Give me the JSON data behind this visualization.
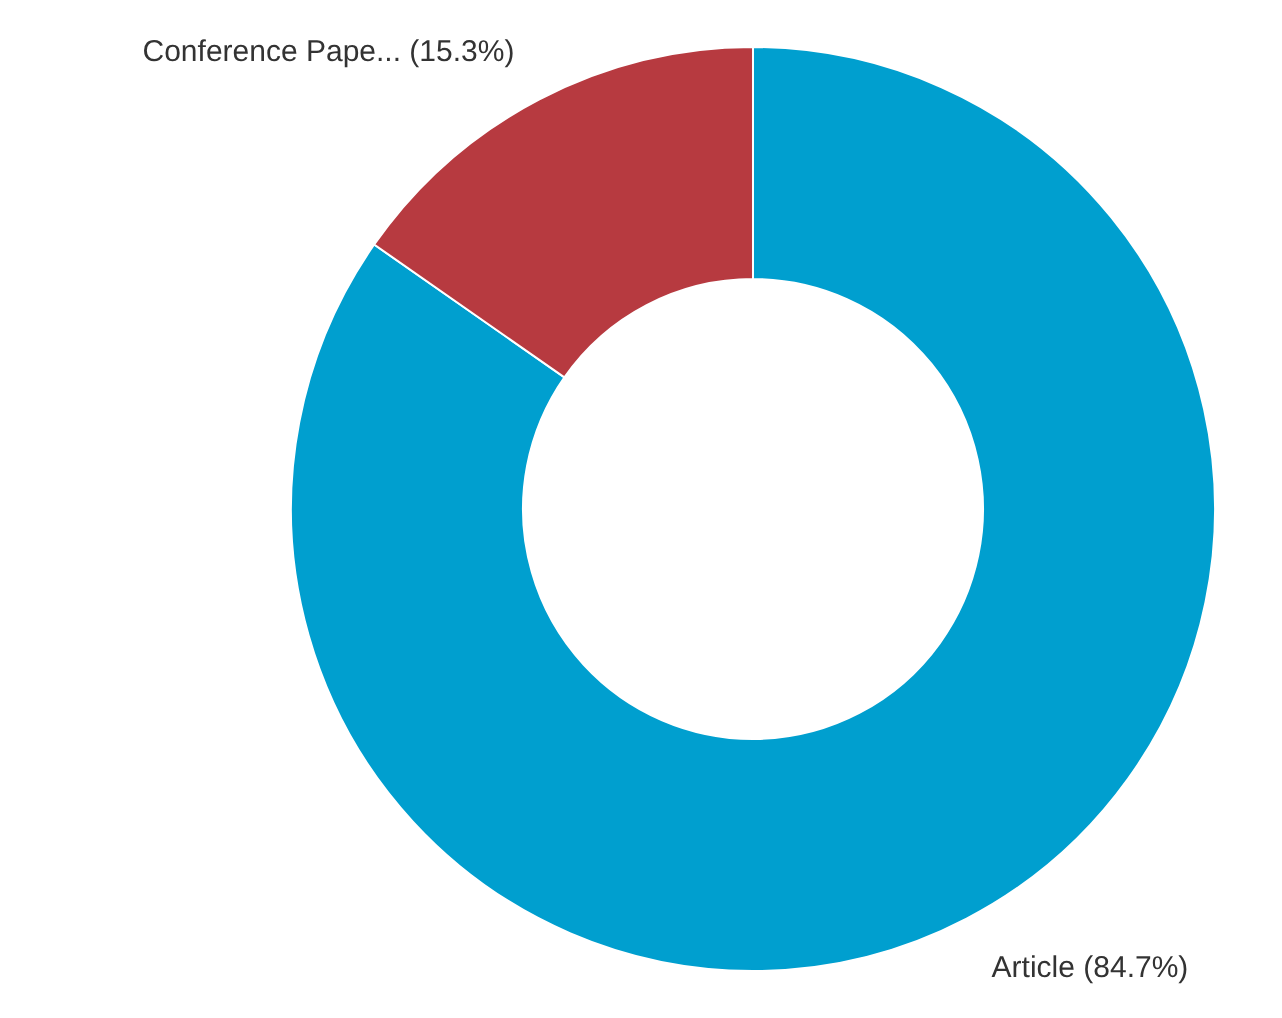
{
  "chart_data": {
    "type": "donut",
    "categories": [
      "Article",
      "Conference Pape..."
    ],
    "values": [
      84.7,
      15.3
    ],
    "colors": [
      "#009fcf",
      "#b73a40"
    ],
    "value_labels": [
      "(84.7%)",
      "(15.3%)"
    ]
  }
}
